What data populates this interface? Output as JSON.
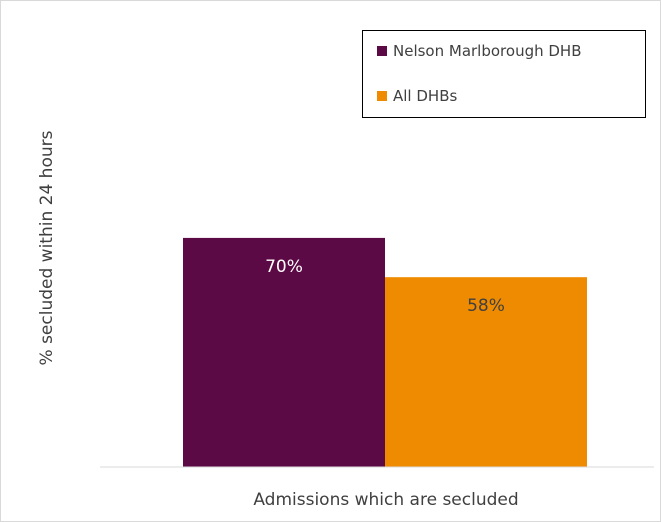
{
  "chart_data": {
    "type": "bar",
    "categories": [
      "Admissions which are secluded"
    ],
    "series": [
      {
        "name": "Nelson Marlborough DHB",
        "values": [
          70
        ],
        "color": "#5c0a45",
        "label_color": "#ffffff"
      },
      {
        "name": "All DHBs",
        "values": [
          58
        ],
        "color": "#ee8b00",
        "label_color": "#404040"
      }
    ],
    "data_labels": [
      "70%",
      "58%"
    ],
    "title": "",
    "xlabel": "",
    "ylabel": "% secluded within 24 hours",
    "ylim": [
      0,
      110
    ],
    "grid": false,
    "legend_position": "top-right"
  }
}
